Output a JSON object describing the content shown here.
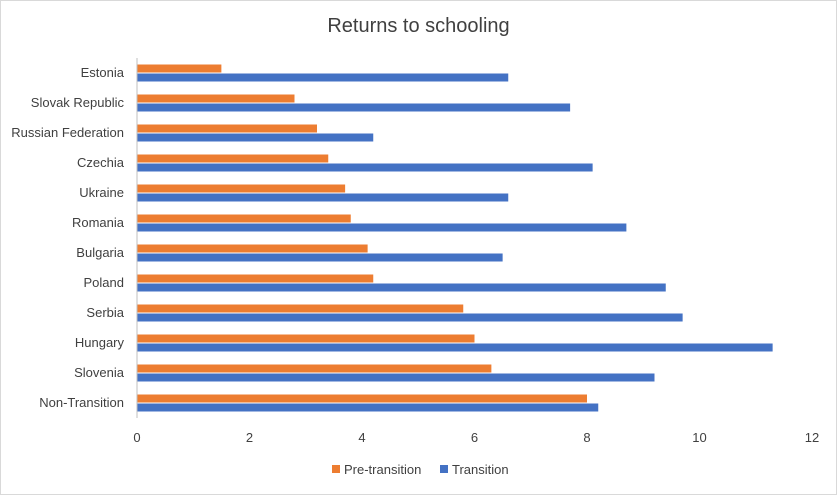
{
  "chart_data": {
    "type": "bar",
    "orientation": "horizontal",
    "title": "Returns to schooling",
    "categories": [
      "Estonia",
      "Slovak Republic",
      "Russian Federation",
      "Czechia",
      "Ukraine",
      "Romania",
      "Bulgaria",
      "Poland",
      "Serbia",
      "Hungary",
      "Slovenia",
      "Non-Transition"
    ],
    "series": [
      {
        "name": "Pre-transition",
        "color": "#ED7D31",
        "values": [
          1.5,
          2.8,
          3.2,
          3.4,
          3.7,
          3.8,
          4.1,
          4.2,
          5.8,
          6.0,
          6.3,
          8.0
        ]
      },
      {
        "name": "Transition",
        "color": "#4472C4",
        "values": [
          6.6,
          7.7,
          4.2,
          8.1,
          6.6,
          8.7,
          6.5,
          9.4,
          9.7,
          11.3,
          9.2,
          8.2
        ]
      }
    ],
    "xlim": [
      0,
      12
    ],
    "xticks": [
      "0",
      "2",
      "4",
      "6",
      "8",
      "10",
      "12"
    ],
    "grid": false,
    "legend_position": "bottom"
  }
}
